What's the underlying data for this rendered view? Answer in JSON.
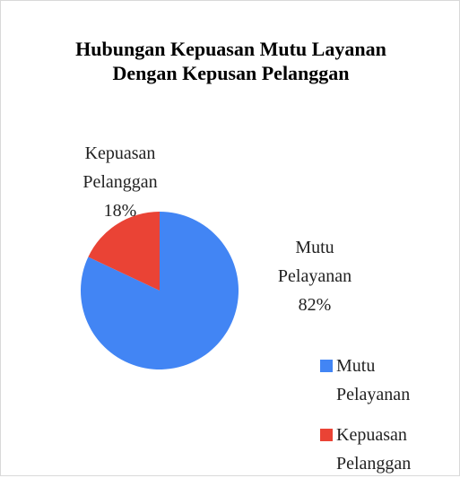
{
  "chart_data": {
    "type": "pie",
    "title": "Hubungan Kepuasan Mutu Layanan Dengan Kepusan Pelanggan",
    "categories": [
      "Mutu Pelayanan",
      "Kepuasan Pelanggan"
    ],
    "values": [
      82,
      18
    ],
    "value_labels": [
      "82%",
      "18%"
    ],
    "colors": [
      "#4285f4",
      "#ea4335"
    ]
  }
}
